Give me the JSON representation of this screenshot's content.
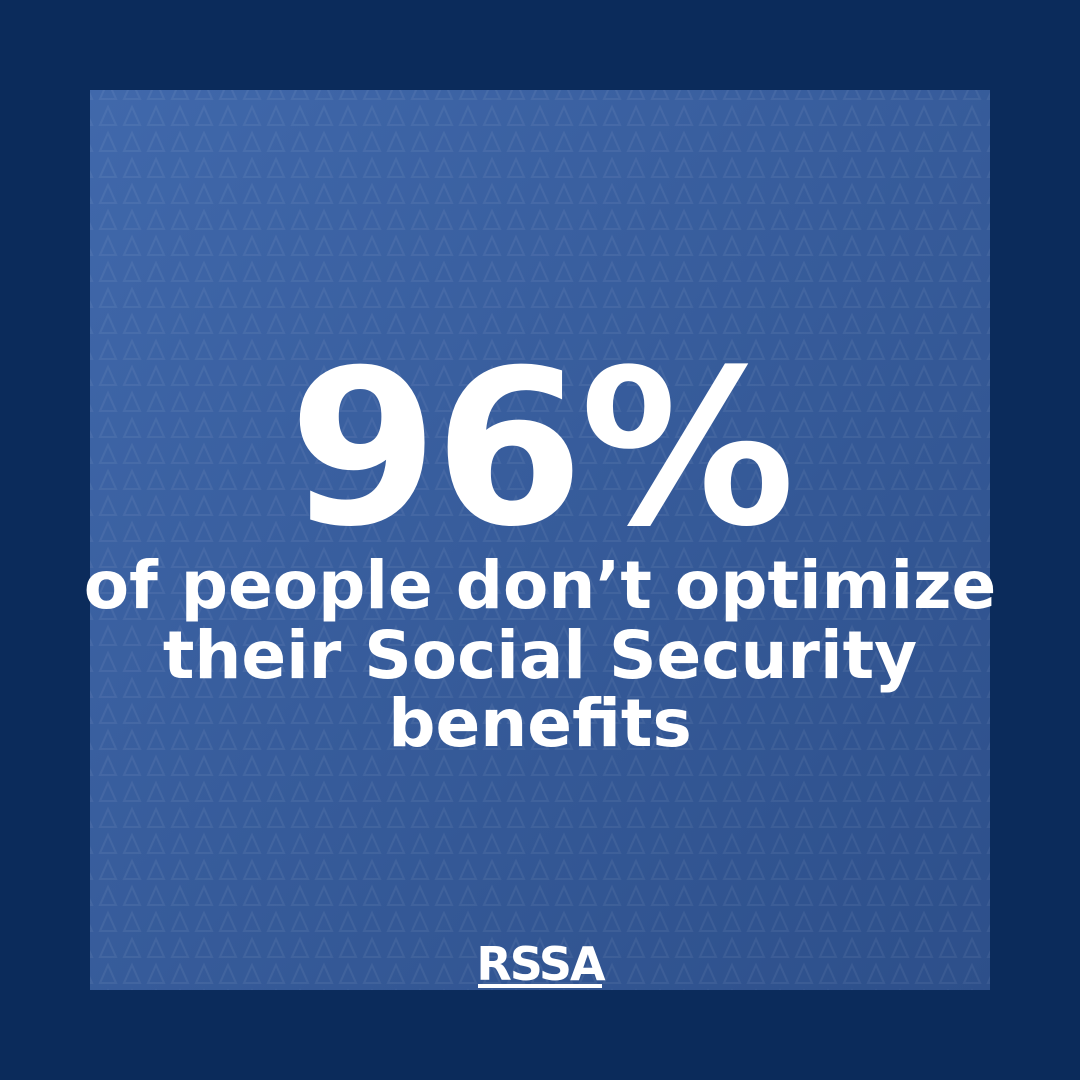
{
  "headline": {
    "stat": "96%",
    "lines": [
      "of people don’t optimize",
      "their Social Security",
      "benefits"
    ]
  },
  "logo": {
    "text": "RSSA"
  }
}
